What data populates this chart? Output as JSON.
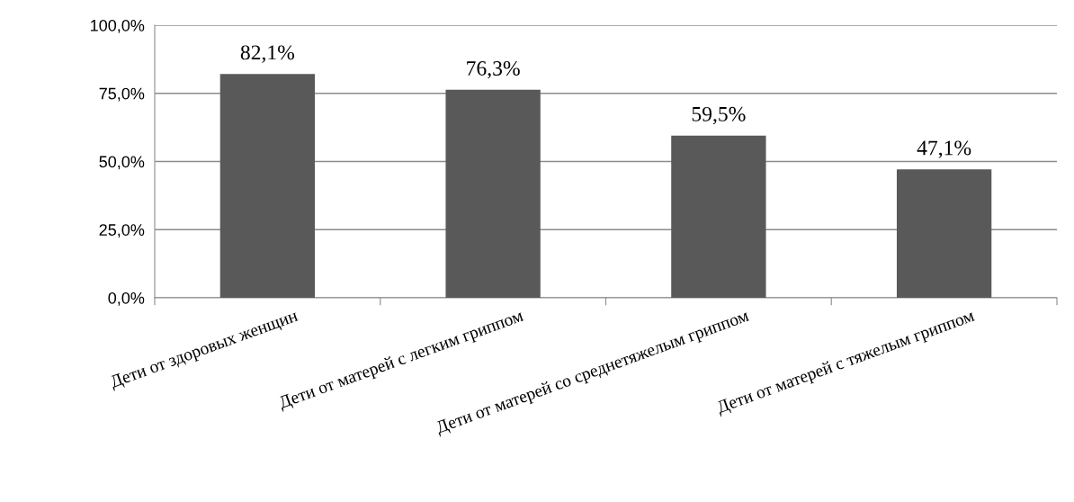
{
  "chart_data": {
    "type": "bar",
    "categories": [
      "Дети от здоровых женщин",
      "Дети от матерей с легким гриппом",
      "Дети от матерей со среднетяжелым гриппом",
      "Дети от матерей с тяжелым гриппом"
    ],
    "values": [
      82.1,
      76.3,
      59.5,
      47.1
    ],
    "value_labels": [
      "82,1%",
      "76,3%",
      "59,5%",
      "47,1%"
    ],
    "color": "#595959",
    "ylim": [
      0,
      100
    ],
    "yticks": [
      {
        "value": 0,
        "label": "0,0%"
      },
      {
        "value": 25,
        "label": "25,0%"
      },
      {
        "value": 50,
        "label": "50,0%"
      },
      {
        "value": 75,
        "label": "75,0%"
      },
      {
        "value": 100,
        "label": "100,0%"
      }
    ],
    "grid": "y"
  }
}
